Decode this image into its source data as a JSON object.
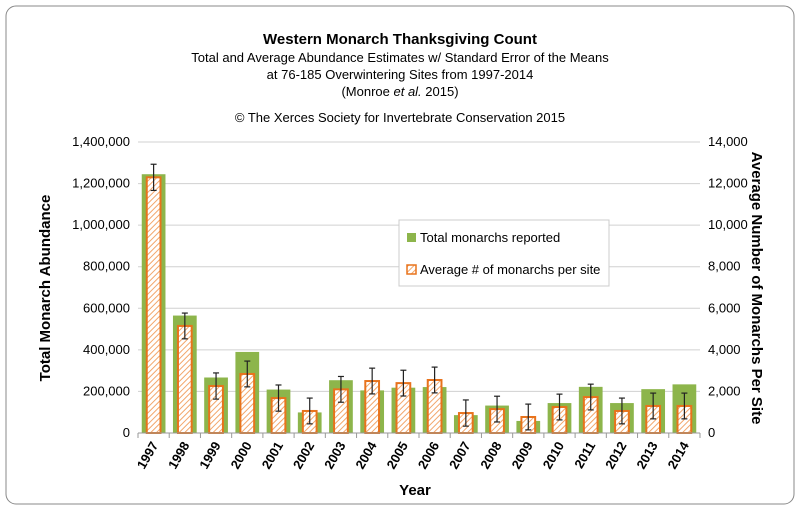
{
  "chart_data": {
    "type": "bar",
    "title": "Western Monarch Thanksgiving Count",
    "subtitle_lines": [
      "Total and Average Abundance Estimates w/ Standard Error of the Means",
      "at 76-185 Overwintering Sites from 1997-2014"
    ],
    "citation_pre": "(Monroe ",
    "citation_em": "et al.",
    "citation_post": " 2015)",
    "copyright": "© The Xerces Society for Invertebrate Conservation 2015",
    "xlabel": "Year",
    "ylabel": "Total Monarch Abundance",
    "y2label": "Average Number of Monarchs Per Site",
    "ylim": [
      0,
      1400000
    ],
    "y2lim": [
      0,
      14000
    ],
    "yticks": [
      "0",
      "200,000",
      "400,000",
      "600,000",
      "800,000",
      "1,000,000",
      "1,200,000",
      "1,400,000"
    ],
    "y2ticks": [
      "0",
      "2,000",
      "4,000",
      "6,000",
      "8,000",
      "10,000",
      "12,000",
      "14,000"
    ],
    "grid": true,
    "legend_placement": "center-right",
    "categories": [
      "1997",
      "1998",
      "1999",
      "2000",
      "2001",
      "2002",
      "2003",
      "2004",
      "2005",
      "2006",
      "2007",
      "2008",
      "2009",
      "2010",
      "2011",
      "2012",
      "2013",
      "2014"
    ],
    "series": [
      {
        "name": "Total monarchs reported",
        "axis": "left",
        "color": "#8db54b",
        "values": [
          1245000,
          565000,
          267000,
          390000,
          209000,
          99000,
          254000,
          205000,
          218000,
          221000,
          86000,
          132000,
          58000,
          144000,
          222000,
          144000,
          211000,
          234000
        ]
      },
      {
        "name": "Average # of monarchs per site",
        "axis": "right",
        "color": "#e8731c",
        "values": [
          12300,
          5150,
          2260,
          2840,
          1680,
          1060,
          2100,
          2500,
          2400,
          2550,
          960,
          1150,
          770,
          1250,
          1730,
          1060,
          1300,
          1300
        ],
        "error": [
          630,
          620,
          630,
          620,
          630,
          620,
          620,
          620,
          620,
          620,
          630,
          620,
          620,
          620,
          620,
          620,
          620,
          620
        ]
      }
    ]
  }
}
